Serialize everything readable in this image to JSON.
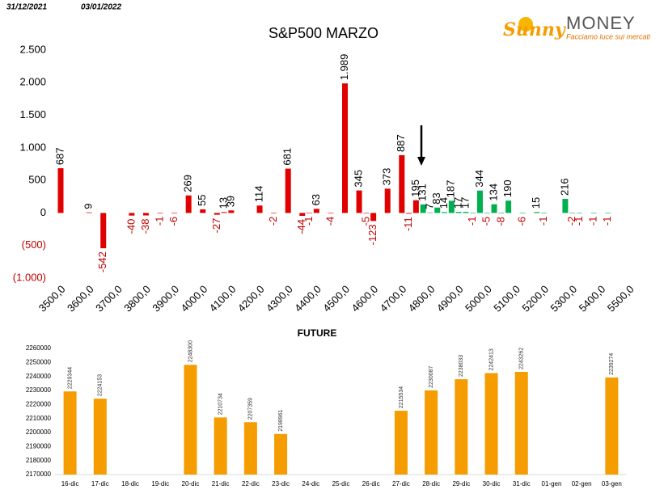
{
  "header": {
    "date_from": "31/12/2021",
    "date_to": "03/01/2022"
  },
  "logo": {
    "brand_a": "Sunny",
    "brand_b": "MONEY",
    "tagline": "Facciamo luce sui mercati"
  },
  "chart_data": [
    {
      "type": "bar",
      "title": "S&P500 MARZO",
      "series": [
        {
          "color": "#e00000",
          "x": [
            3500,
            3600,
            3650,
            3750,
            3800,
            3850,
            3900,
            3950,
            4000,
            4050,
            4075,
            4100,
            4200,
            4250,
            4300,
            4350,
            4375,
            4400,
            4450,
            4500,
            4550,
            4575,
            4600,
            4650,
            4700,
            4725,
            4750
          ],
          "values": [
            687,
            9,
            -542,
            -40,
            -38,
            -1,
            -6,
            269,
            55,
            -27,
            13,
            39,
            114,
            -2,
            681,
            -44,
            -1,
            63,
            -4,
            1989,
            345,
            -5,
            -123,
            373,
            887,
            -11,
            195
          ],
          "value_labels": [
            "687",
            "9",
            "-542",
            "-40",
            "-38",
            "-1",
            "-6",
            "269",
            "55",
            "-27",
            "13",
            "39",
            "114",
            "-2",
            "681",
            "-44",
            "-1",
            "63",
            "-4",
            "1.989",
            "345",
            "-5",
            "-123",
            "373",
            "887",
            "-11",
            "195"
          ]
        },
        {
          "color": "#00b050",
          "x": [
            4775,
            4800,
            4825,
            4850,
            4875,
            4900,
            4925,
            4950,
            4975,
            5000,
            5025,
            5050,
            5075,
            5125,
            5175,
            5200,
            5275,
            5300,
            5325,
            5375,
            5425
          ],
          "values": [
            131,
            7,
            83,
            14,
            187,
            17,
            17,
            -1,
            344,
            -5,
            134,
            -8,
            190,
            -6,
            15,
            -1,
            216,
            -2,
            -1,
            -1,
            -1
          ]
        }
      ],
      "xlim": [
        3500,
        5500
      ],
      "xticks": [
        {
          "value": 3500,
          "label": "3500,0"
        },
        {
          "value": 3600,
          "label": "3600,0"
        },
        {
          "value": 3700,
          "label": "3700,0"
        },
        {
          "value": 3800,
          "label": "3800,0"
        },
        {
          "value": 3900,
          "label": "3900,0"
        },
        {
          "value": 4000,
          "label": "4000,0"
        },
        {
          "value": 4100,
          "label": "4100,0"
        },
        {
          "value": 4200,
          "label": "4200,0"
        },
        {
          "value": 4300,
          "label": "4300,0"
        },
        {
          "value": 4400,
          "label": "4400,0"
        },
        {
          "value": 4500,
          "label": "4500,0"
        },
        {
          "value": 4600,
          "label": "4600,0"
        },
        {
          "value": 4700,
          "label": "4700,0"
        },
        {
          "value": 4800,
          "label": "4800,0"
        },
        {
          "value": 4900,
          "label": "4900,0"
        },
        {
          "value": 5000,
          "label": "5000,0"
        },
        {
          "value": 5100,
          "label": "5100,0"
        },
        {
          "value": 5200,
          "label": "5200,0"
        },
        {
          "value": 5300,
          "label": "5300,0"
        },
        {
          "value": 5400,
          "label": "5400,0"
        },
        {
          "value": 5500,
          "label": "5500,0"
        }
      ],
      "ylim": [
        -1000,
        2500
      ],
      "yticks": [
        {
          "value": 2500,
          "label": "2.500"
        },
        {
          "value": 2000,
          "label": "2.000"
        },
        {
          "value": 1500,
          "label": "1.500"
        },
        {
          "value": 1000,
          "label": "1.000"
        },
        500,
        0,
        {
          "value": -500,
          "label": "(500)"
        },
        {
          "value": -1000,
          "label": "(1.000)"
        }
      ]
    },
    {
      "type": "bar",
      "title": "FUTURE",
      "categories": [
        "16-dic",
        "17-dic",
        "18-dic",
        "19-dic",
        "20-dic",
        "21-dic",
        "22-dic",
        "23-dic",
        "24-dic",
        "25-dic",
        "26-dic",
        "27-dic",
        "28-dic",
        "29-dic",
        "30-dic",
        "31-dic",
        "01-gen",
        "02-gen",
        "03-gen"
      ],
      "values": [
        2229344,
        2224153,
        null,
        null,
        2248300,
        2210734,
        2207359,
        2198961,
        null,
        null,
        null,
        2215534,
        2230087,
        2238033,
        2242413,
        2243262,
        null,
        null,
        2239274
      ],
      "color": "#f59c00",
      "ylim": [
        2170000,
        2260000
      ],
      "yticks": [
        2170000,
        2180000,
        2190000,
        2200000,
        2210000,
        2220000,
        2230000,
        2240000,
        2250000,
        2260000
      ]
    }
  ]
}
